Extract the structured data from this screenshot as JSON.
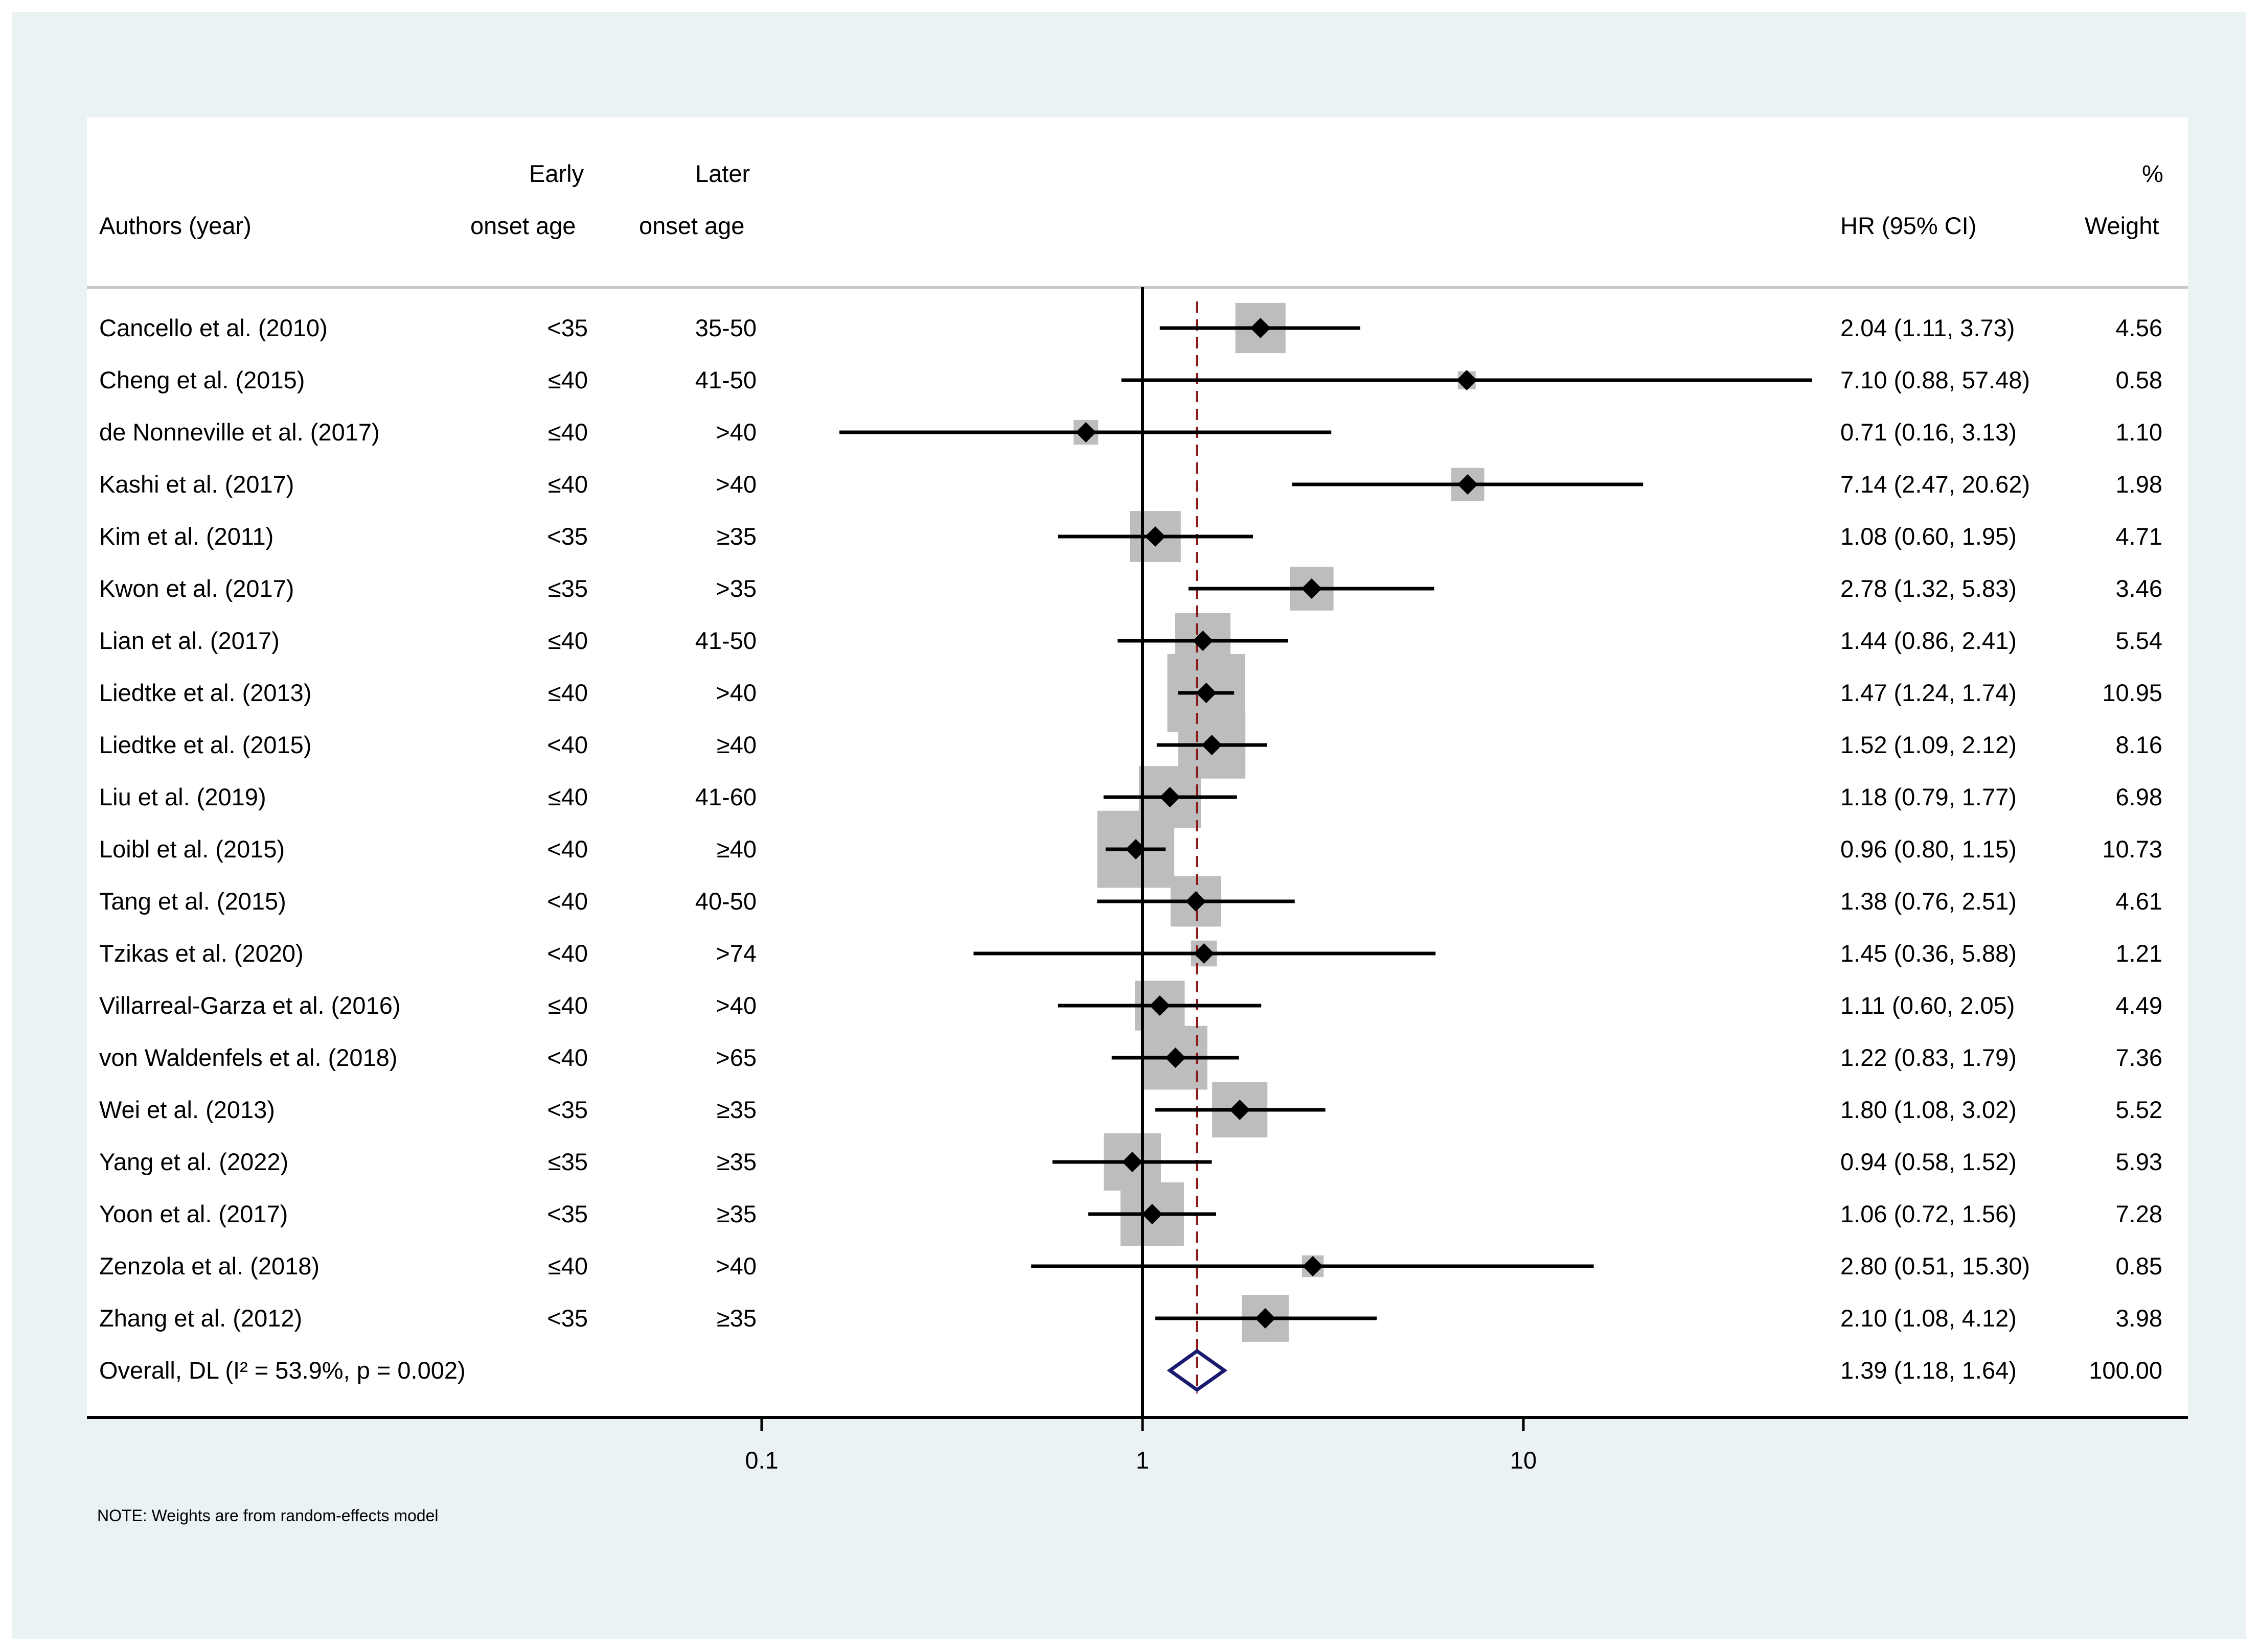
{
  "headers": {
    "author": "Authors (year)",
    "early_line1": "Early",
    "early_line2": "onset age",
    "later_line1": "Later",
    "later_line2": "onset age",
    "hr": "HR (95% CI)",
    "weight_line1": "%",
    "weight_line2": "Weight"
  },
  "note": "NOTE: Weights are from random-effects model",
  "chart_data": {
    "type": "forest",
    "scale": "log",
    "xlim": [
      0.1,
      10
    ],
    "x_ticks": [
      0.1,
      1,
      10
    ],
    "x_tick_labels": [
      "0.1",
      "1",
      "10"
    ],
    "null_line": 1,
    "pooled_line": 1.39,
    "studies": [
      {
        "author": "Cancello et al. (2010)",
        "early": "<35",
        "later": "35-50",
        "hr": 2.04,
        "lo": 1.11,
        "hi": 3.73,
        "ci_text": "2.04 (1.11, 3.73)",
        "weight": 4.56,
        "weight_text": "4.56"
      },
      {
        "author": "Cheng et al. (2015)",
        "early": "≤40",
        "later": "41-50",
        "hr": 7.1,
        "lo": 0.88,
        "hi": 57.48,
        "ci_text": "7.10 (0.88, 57.48)",
        "weight": 0.58,
        "weight_text": "0.58"
      },
      {
        "author": "de Nonneville et al. (2017)",
        "early": "≤40",
        "later": ">40",
        "hr": 0.71,
        "lo": 0.16,
        "hi": 3.13,
        "ci_text": "0.71 (0.16, 3.13)",
        "weight": 1.1,
        "weight_text": "1.10"
      },
      {
        "author": "Kashi et al. (2017)",
        "early": "≤40",
        "later": ">40",
        "hr": 7.14,
        "lo": 2.47,
        "hi": 20.62,
        "ci_text": "7.14 (2.47, 20.62)",
        "weight": 1.98,
        "weight_text": "1.98"
      },
      {
        "author": "Kim et al. (2011)",
        "early": "<35",
        "later": "≥35",
        "hr": 1.08,
        "lo": 0.6,
        "hi": 1.95,
        "ci_text": "1.08 (0.60, 1.95)",
        "weight": 4.71,
        "weight_text": "4.71"
      },
      {
        "author": "Kwon et al. (2017)",
        "early": "≤35",
        "later": ">35",
        "hr": 2.78,
        "lo": 1.32,
        "hi": 5.83,
        "ci_text": "2.78 (1.32, 5.83)",
        "weight": 3.46,
        "weight_text": "3.46"
      },
      {
        "author": "Lian et al. (2017)",
        "early": "≤40",
        "later": "41-50",
        "hr": 1.44,
        "lo": 0.86,
        "hi": 2.41,
        "ci_text": "1.44 (0.86, 2.41)",
        "weight": 5.54,
        "weight_text": "5.54"
      },
      {
        "author": "Liedtke et al. (2013)",
        "early": "≤40",
        "later": ">40",
        "hr": 1.47,
        "lo": 1.24,
        "hi": 1.74,
        "ci_text": "1.47 (1.24, 1.74)",
        "weight": 10.95,
        "weight_text": "10.95"
      },
      {
        "author": "Liedtke et al. (2015)",
        "early": "<40",
        "later": "≥40",
        "hr": 1.52,
        "lo": 1.09,
        "hi": 2.12,
        "ci_text": "1.52 (1.09, 2.12)",
        "weight": 8.16,
        "weight_text": "8.16"
      },
      {
        "author": "Liu et al. (2019)",
        "early": "≤40",
        "later": "41-60",
        "hr": 1.18,
        "lo": 0.79,
        "hi": 1.77,
        "ci_text": "1.18 (0.79, 1.77)",
        "weight": 6.98,
        "weight_text": "6.98"
      },
      {
        "author": "Loibl et al. (2015)",
        "early": "<40",
        "later": "≥40",
        "hr": 0.96,
        "lo": 0.8,
        "hi": 1.15,
        "ci_text": "0.96 (0.80, 1.15)",
        "weight": 10.73,
        "weight_text": "10.73"
      },
      {
        "author": "Tang et al. (2015)",
        "early": "<40",
        "later": "40-50",
        "hr": 1.38,
        "lo": 0.76,
        "hi": 2.51,
        "ci_text": "1.38 (0.76, 2.51)",
        "weight": 4.61,
        "weight_text": "4.61"
      },
      {
        "author": "Tzikas et al. (2020)",
        "early": "<40",
        "later": ">74",
        "hr": 1.45,
        "lo": 0.36,
        "hi": 5.88,
        "ci_text": "1.45 (0.36, 5.88)",
        "weight": 1.21,
        "weight_text": "1.21"
      },
      {
        "author": "Villarreal-Garza et al. (2016)",
        "early": "≤40",
        "later": ">40",
        "hr": 1.11,
        "lo": 0.6,
        "hi": 2.05,
        "ci_text": "1.11 (0.60, 2.05)",
        "weight": 4.49,
        "weight_text": "4.49"
      },
      {
        "author": "von Waldenfels et al. (2018)",
        "early": "<40",
        "later": ">65",
        "hr": 1.22,
        "lo": 0.83,
        "hi": 1.79,
        "ci_text": "1.22 (0.83, 1.79)",
        "weight": 7.36,
        "weight_text": "7.36"
      },
      {
        "author": "Wei et al. (2013)",
        "early": "<35",
        "later": "≥35",
        "hr": 1.8,
        "lo": 1.08,
        "hi": 3.02,
        "ci_text": "1.80 (1.08, 3.02)",
        "weight": 5.52,
        "weight_text": "5.52"
      },
      {
        "author": "Yang et al. (2022)",
        "early": "≤35",
        "later": "≥35",
        "hr": 0.94,
        "lo": 0.58,
        "hi": 1.52,
        "ci_text": "0.94 (0.58, 1.52)",
        "weight": 5.93,
        "weight_text": "5.93"
      },
      {
        "author": "Yoon et al. (2017)",
        "early": "<35",
        "later": "≥35",
        "hr": 1.06,
        "lo": 0.72,
        "hi": 1.56,
        "ci_text": "1.06 (0.72, 1.56)",
        "weight": 7.28,
        "weight_text": "7.28"
      },
      {
        "author": "Zenzola et al. (2018)",
        "early": "≤40",
        "later": ">40",
        "hr": 2.8,
        "lo": 0.51,
        "hi": 15.3,
        "ci_text": "2.80 (0.51, 15.30)",
        "weight": 0.85,
        "weight_text": "0.85"
      },
      {
        "author": "Zhang et al. (2012)",
        "early": "<35",
        "later": "≥35",
        "hr": 2.1,
        "lo": 1.08,
        "hi": 4.12,
        "ci_text": "2.10 (1.08, 4.12)",
        "weight": 3.98,
        "weight_text": "3.98"
      }
    ],
    "overall": {
      "label": "Overall, DL (I² = 53.9%, p = 0.002)",
      "hr": 1.39,
      "lo": 1.18,
      "hi": 1.64,
      "ci_text": "1.39 (1.18, 1.64)",
      "weight": 100.0,
      "weight_text": "100.00"
    },
    "colors": {
      "marker": "#000000",
      "weight_box": "#bdbdbd",
      "overall_diamond": "#1a1a6e",
      "pooled_line": "#8b1a1a"
    }
  }
}
